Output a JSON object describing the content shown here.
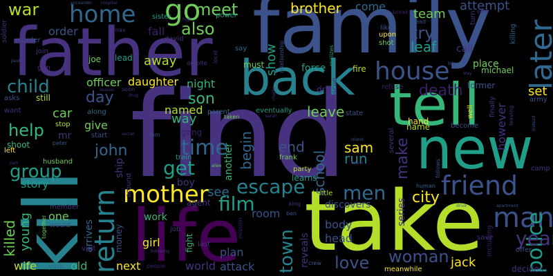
{
  "background": "#000000",
  "palette": {
    "deep_purple": "#440154",
    "indigo": "#3b1f6b",
    "violet": "#46327e",
    "blue": "#3b528b",
    "steel_blue": "#31688e",
    "teal": "#26828e",
    "sea_green": "#1f9e89",
    "green": "#35b779",
    "light_green": "#6ece58",
    "lime": "#b5de2b",
    "yellow": "#fde725"
  },
  "words": {
    "find": "find",
    "family": "family",
    "father": "father",
    "take": "take",
    "kill": "kill",
    "life": "life",
    "back": "back",
    "tell": "tell",
    "new": "new",
    "friend": "friend",
    "later": "later",
    "house": "house",
    "home": "home",
    "return": "return",
    "mother": "mother",
    "man": "man",
    "escape": "escape",
    "police": "police",
    "woman": "woman",
    "town": "town",
    "year": "year",
    "go": "go",
    "meet": "meet",
    "also": "also",
    "war": "war",
    "brother": "brother",
    "child": "child",
    "help": "help",
    "group": "group",
    "time": "time",
    "get": "get",
    "john": "john",
    "film": "film",
    "men": "men",
    "love": "love",
    "city": "city",
    "death": "death",
    "day": "day",
    "son": "son",
    "make": "make",
    "leave": "leave",
    "begin": "begin",
    "school": "school",
    "sam": "sam",
    "end": "end",
    "run": "run",
    "try": "try",
    "leaf": "leaf",
    "team": "team",
    "attempt": "attempt",
    "come": "come",
    "away": "away",
    "show": "show",
    "fall": "fall",
    "order": "order",
    "night": "night",
    "officer": "officer",
    "daughter": "daughter",
    "named": "named",
    "way": "way",
    "give": "give",
    "car": "car",
    "story": "story",
    "killed": "killed",
    "young": "young",
    "wife": "wife",
    "old": "old",
    "next": "next",
    "arrives": "arrives",
    "money": "money",
    "girl": "girl",
    "work": "work",
    "fight": "fight",
    "plan": "plan",
    "attack": "attack",
    "world": "world",
    "room": "room",
    "body": "body",
    "head": "head",
    "jack": "jack",
    "series": "series",
    "reveals": "reveals",
    "discovers": "discovers",
    "however": "however",
    "set": "set",
    "decides": "decides",
    "see": "see",
    "boy": "boy",
    "another": "another",
    "one": "one",
    "ship": "ship",
    "force": "force",
    "fire": "fire",
    "place": "place",
    "must": "must",
    "call": "call",
    "hand": "hand",
    "name": "name",
    "become": "become",
    "former": "former",
    "michael": "michael",
    "joe": "joe",
    "lead": "lead",
    "mr": "mr",
    "shoot": "shoot",
    "stop": "stop",
    "start": "start",
    "gang": "gang",
    "agent": "agent",
    "party": "party",
    "learns": "learns",
    "frank": "frank",
    "battle": "battle",
    "along": "along",
    "eventually": "eventually",
    "state": "state",
    "still": "still",
    "want": "want",
    "asks": "asks",
    "husband": "husband",
    "soldier": "soldier",
    "murder": "murder",
    "join": "join",
    "gun": "gun",
    "left": "left",
    "peter": "peter",
    "member": "member",
    "visit": "visit",
    "york": "york",
    "would": "would",
    "together": "together",
    "train": "train",
    "around": "around",
    "parent": "parent",
    "taken": "taken",
    "death2": "dr",
    "refuse": "refuse",
    "rescue": "rescue",
    "meanwhile": "meanwhile",
    "crew": "crew",
    "king": "king",
    "ben": "ben",
    "job": "job",
    "last": "last",
    "people": "people",
    "following": "following",
    "mission": "mission",
    "save": "save",
    "offer": "offer",
    "including": "including",
    "human": "human",
    "follows": "follows",
    "several": "several",
    "finally": "finally",
    "well": "well",
    "leaving": "leaving",
    "army": "army",
    "camp": "camp",
    "power": "power",
    "sister": "sister",
    "relationship": "relationship",
    "realizes": "realizes",
    "like": "like",
    "upon": "upon",
    "shot": "shot",
    "break": "break",
    "dead": "dead",
    "turn": "turn",
    "killing": "killing",
    "say": "say",
    "david": "david",
    "max": "max",
    "despite": "despite",
    "local": "local",
    "hospital": "hospital",
    "encounter": "encounter",
    "soon": "soon",
    "season": "season",
    "drug": "drug",
    "secret": "secret",
    "tom": "tom",
    "alien": "alien",
    "island": "island",
    "travel": "travel",
    "drive": "drive",
    "apartment": "apartment",
    "paul": "paul",
    "charlie": "charlie",
    "sarah": "sarah",
    "part": "part",
    "billy": "billy",
    "stay": "stay",
    "game": "game",
    "high": "high",
    "instead": "instead"
  }
}
